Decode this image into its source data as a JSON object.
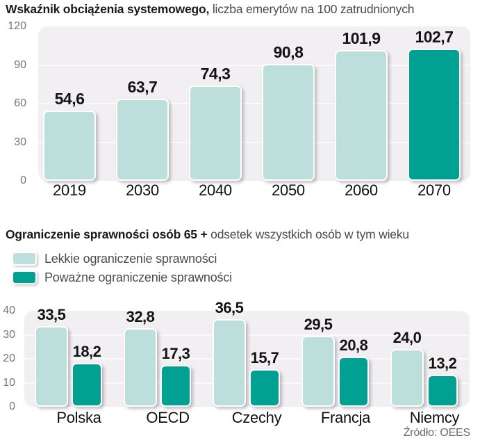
{
  "colors": {
    "light": "#BDDFDB",
    "dark": "#00A093",
    "plot_bg": "#F1EFF2",
    "gridline": "#FAF9FB"
  },
  "chart1": {
    "title_bold": "Wskaźnik obciążenia systemowego,",
    "title_rest": " liczba emerytów na 100 zatrudnionych"
  },
  "chart2": {
    "title_bold": "Ograniczenie sprawności osób 65 +",
    "title_rest": " odsetek wszystkich osób w tym wieku",
    "legend": [
      {
        "label": "Lekkie ograniczenie sprawności",
        "color": "light"
      },
      {
        "label": "Poważne ograniczenie sprawności",
        "color": "dark"
      }
    ]
  },
  "source": "Źródło: OEES",
  "chart_data": [
    {
      "type": "bar",
      "title": "Wskaźnik obciążenia systemowego, liczba emerytów na 100 zatrudnionych",
      "categories": [
        "2019",
        "2030",
        "2040",
        "2050",
        "2060",
        "2070"
      ],
      "values": [
        54.6,
        63.7,
        74.3,
        90.8,
        101.9,
        102.7
      ],
      "value_labels": [
        "54,6",
        "63,7",
        "74,3",
        "90,8",
        "101,9",
        "102,7"
      ],
      "bar_colors": [
        "light",
        "light",
        "light",
        "light",
        "light",
        "dark"
      ],
      "xlabel": "",
      "ylabel": "",
      "ylim": [
        0,
        120
      ],
      "yticks": [
        0,
        30,
        60,
        90,
        120
      ],
      "grid": true,
      "legend_position": "none"
    },
    {
      "type": "bar",
      "title": "Ograniczenie sprawności osób 65 + odsetek wszystkich osób w tym wieku",
      "categories": [
        "Polska",
        "OECD",
        "Czechy",
        "Francja",
        "Niemcy"
      ],
      "series": [
        {
          "name": "Lekkie ograniczenie sprawności",
          "color": "light",
          "values": [
            33.5,
            32.8,
            36.5,
            29.5,
            24.0
          ],
          "value_labels": [
            "33,5",
            "32,8",
            "36,5",
            "29,5",
            "24,0"
          ]
        },
        {
          "name": "Poważne ograniczenie sprawności",
          "color": "dark",
          "values": [
            18.2,
            17.3,
            15.7,
            20.8,
            13.2
          ],
          "value_labels": [
            "18,2",
            "17,3",
            "15,7",
            "20,8",
            "13,2"
          ]
        }
      ],
      "xlabel": "",
      "ylabel": "",
      "ylim": [
        0,
        40
      ],
      "yticks": [
        0,
        10,
        20,
        30,
        40
      ],
      "grid": true,
      "legend_position": "top-left",
      "source": "Źródło: OEES"
    }
  ]
}
